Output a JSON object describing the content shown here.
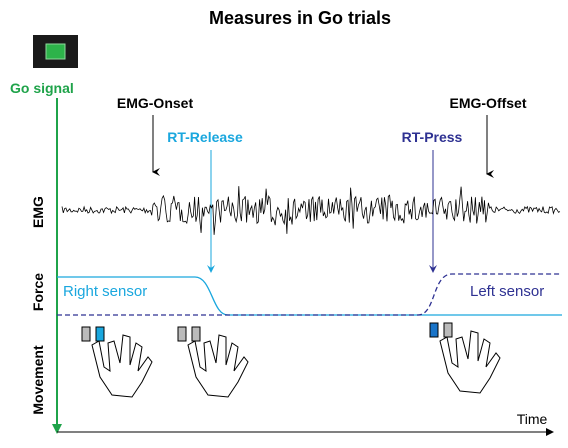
{
  "title": "Measures in Go trials",
  "go_signal": "Go signal",
  "events": {
    "emg_onset": "EMG-Onset",
    "rt_release": "RT-Release",
    "rt_press": "RT-Press",
    "emg_offset": "EMG-Offset"
  },
  "rows": {
    "emg": "EMG",
    "force": "Force",
    "movement": "Movement"
  },
  "sensors": {
    "right": "Right sensor",
    "left": "Left sensor"
  },
  "time_axis": "Time"
}
